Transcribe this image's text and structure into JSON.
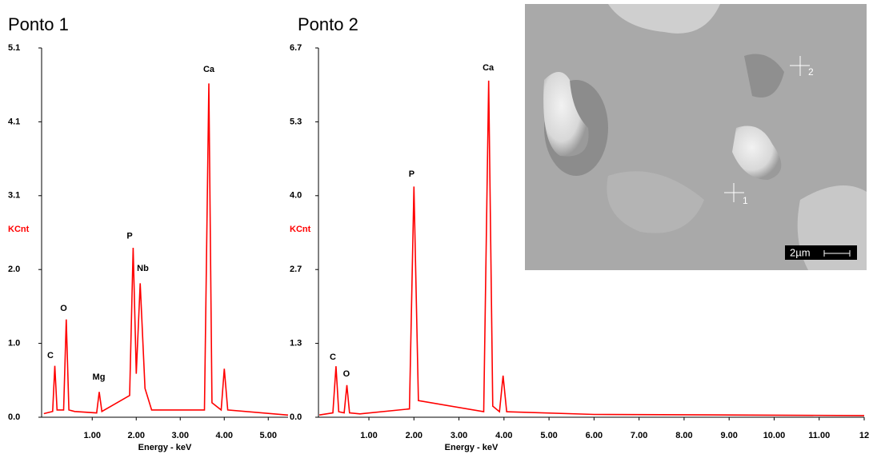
{
  "chart_data": [
    {
      "type": "line",
      "title": "Ponto 1",
      "y_label": "KCnt",
      "x_label": "Energy - keV",
      "xlim": [
        -0.15,
        5.45
      ],
      "ylim": [
        0,
        5.1
      ],
      "xticks": [
        {
          "value": 1,
          "label": "1.00"
        },
        {
          "value": 2,
          "label": "2.00"
        },
        {
          "value": 3,
          "label": "3.00"
        },
        {
          "value": 4,
          "label": "4.00"
        },
        {
          "value": 5,
          "label": "5.00"
        }
      ],
      "yticks": [
        {
          "value": 0,
          "label": "0.0"
        },
        {
          "value": 1.02,
          "label": "1.0"
        },
        {
          "value": 2.04,
          "label": "2.0"
        },
        {
          "value": 3.06,
          "label": "3.1"
        },
        {
          "value": 4.08,
          "label": "4.1"
        },
        {
          "value": 5.1,
          "label": "5.1"
        }
      ],
      "series": [
        {
          "color": "#ff0000",
          "x": [
            -0.1,
            0.1,
            0.15,
            0.2,
            0.35,
            0.41,
            0.47,
            0.6,
            1.1,
            1.16,
            1.22,
            1.85,
            1.93,
            2.0,
            2.09,
            2.2,
            2.35,
            3.55,
            3.65,
            3.72,
            3.93,
            4.0,
            4.08,
            5.45
          ],
          "values": [
            0.05,
            0.08,
            0.71,
            0.1,
            0.1,
            1.35,
            0.1,
            0.08,
            0.06,
            0.35,
            0.08,
            0.3,
            2.34,
            0.6,
            1.85,
            0.4,
            0.1,
            0.1,
            4.61,
            0.2,
            0.1,
            0.67,
            0.1,
            0.03
          ]
        }
      ],
      "annotations": [
        {
          "text": "C",
          "x": 0.05,
          "y": 0.85
        },
        {
          "text": "O",
          "x": 0.35,
          "y": 1.5
        },
        {
          "text": "Mg",
          "x": 1.15,
          "y": 0.55
        },
        {
          "text": "P",
          "x": 1.85,
          "y": 2.5
        },
        {
          "text": "Nb",
          "x": 2.15,
          "y": 2.05
        },
        {
          "text": "Ca",
          "x": 3.65,
          "y": 4.8
        }
      ]
    },
    {
      "type": "line",
      "title": "Ponto 2",
      "y_label": "KCnt",
      "x_label": "Energy - keV",
      "xlim": [
        -0.12,
        12.0
      ],
      "ylim": [
        0,
        6.66
      ],
      "xticks": [
        {
          "value": 1,
          "label": "1.00"
        },
        {
          "value": 2,
          "label": "2.00"
        },
        {
          "value": 3,
          "label": "3.00"
        },
        {
          "value": 4,
          "label": "4.00"
        },
        {
          "value": 5,
          "label": "5.00"
        },
        {
          "value": 6,
          "label": "6.00"
        },
        {
          "value": 7,
          "label": "7.00"
        },
        {
          "value": 8,
          "label": "8.00"
        },
        {
          "value": 9,
          "label": "9.00"
        },
        {
          "value": 10,
          "label": "10.00"
        },
        {
          "value": 11,
          "label": "11.00"
        },
        {
          "value": 12,
          "label": "12"
        }
      ],
      "yticks": [
        {
          "value": 0,
          "label": "0.0"
        },
        {
          "value": 1.332,
          "label": "1.3"
        },
        {
          "value": 2.664,
          "label": "2.7"
        },
        {
          "value": 3.996,
          "label": "4.0"
        },
        {
          "value": 5.328,
          "label": "5.3"
        },
        {
          "value": 6.66,
          "label": "6.7"
        }
      ],
      "series": [
        {
          "color": "#ff0000",
          "x": [
            -0.1,
            0.2,
            0.27,
            0.33,
            0.45,
            0.51,
            0.57,
            0.8,
            1.9,
            2.0,
            2.1,
            3.55,
            3.66,
            3.75,
            3.9,
            3.98,
            4.06,
            6.0,
            9.0,
            12.0
          ],
          "values": [
            0.04,
            0.08,
            0.92,
            0.1,
            0.08,
            0.58,
            0.08,
            0.06,
            0.15,
            4.16,
            0.3,
            0.1,
            6.07,
            0.2,
            0.1,
            0.75,
            0.1,
            0.05,
            0.04,
            0.03
          ]
        }
      ],
      "annotations": [
        {
          "text": "C",
          "x": 0.2,
          "y": 1.08
        },
        {
          "text": "O",
          "x": 0.5,
          "y": 0.78
        },
        {
          "text": "P",
          "x": 1.95,
          "y": 4.38
        },
        {
          "text": "Ca",
          "x": 3.65,
          "y": 6.3
        }
      ]
    }
  ],
  "image": {
    "markers": [
      "1",
      "2"
    ],
    "scale_bar": "2µm"
  }
}
